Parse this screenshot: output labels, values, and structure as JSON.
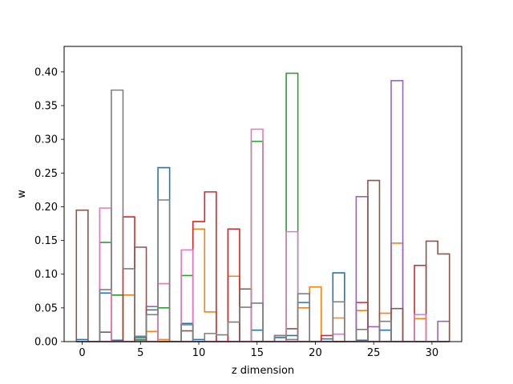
{
  "chart_data": {
    "type": "step",
    "title": "",
    "xlabel": "z dimension",
    "ylabel": "w",
    "xlim": [
      -1.55,
      32.55
    ],
    "ylim": [
      0,
      0.4378
    ],
    "x_ticks": [
      0,
      5,
      10,
      15,
      20,
      25,
      30
    ],
    "y_ticks": [
      0.0,
      0.05,
      0.1,
      0.15,
      0.2,
      0.25,
      0.3,
      0.35,
      0.4
    ],
    "x": [
      0,
      1,
      2,
      3,
      4,
      5,
      6,
      7,
      8,
      9,
      10,
      11,
      12,
      13,
      14,
      15,
      16,
      17,
      18,
      19,
      20,
      21,
      22,
      23,
      24,
      25,
      26,
      27,
      28,
      29,
      30,
      31
    ],
    "series": [
      {
        "color": "#1f77b4",
        "values": [
          0.003,
          0,
          0.072,
          0.002,
          0,
          0.006,
          0.047,
          0.258,
          0,
          0.027,
          0.003,
          0,
          0,
          0,
          0,
          0.017,
          0,
          0.006,
          0.009,
          0.058,
          0,
          0.004,
          0.102,
          0,
          0.002,
          0,
          0.017,
          0,
          0,
          0,
          0,
          0
        ]
      },
      {
        "color": "#ff7f0e",
        "values": [
          0,
          0,
          0,
          0.069,
          0.069,
          0.002,
          0.015,
          0.003,
          0,
          0,
          0.167,
          0.044,
          0,
          0.097,
          0,
          0,
          0,
          0,
          0,
          0.05,
          0.081,
          0,
          0.035,
          0,
          0.046,
          0,
          0.042,
          0.146,
          0,
          0.034,
          0,
          0
        ]
      },
      {
        "color": "#2ca02c",
        "values": [
          0,
          0,
          0.147,
          0.069,
          0,
          0.003,
          0,
          0.05,
          0,
          0.098,
          0,
          0,
          0,
          0,
          0,
          0.297,
          0,
          0,
          0.398,
          0,
          0,
          0,
          0,
          0,
          0,
          0,
          0,
          0,
          0,
          0,
          0,
          0
        ]
      },
      {
        "color": "#d62728",
        "values": [
          0,
          0,
          0,
          0,
          0.185,
          0,
          0,
          0,
          0,
          0,
          0.178,
          0.222,
          0,
          0.167,
          0,
          0,
          0,
          0,
          0,
          0,
          0,
          0.009,
          0,
          0,
          0.058,
          0,
          0,
          0,
          0,
          0.113,
          0,
          0
        ]
      },
      {
        "color": "#9467bd",
        "values": [
          0,
          0,
          0,
          0,
          0,
          0,
          0.052,
          0,
          0,
          0,
          0,
          0,
          0,
          0,
          0,
          0,
          0,
          0,
          0,
          0,
          0,
          0,
          0,
          0,
          0.215,
          0.022,
          0,
          0.387,
          0,
          0,
          0,
          0.03
        ]
      },
      {
        "color": "#8c564b",
        "values": [
          0.195,
          0,
          0.014,
          0,
          0,
          0.14,
          0,
          0,
          0,
          0.016,
          0,
          0,
          0,
          0,
          0.078,
          0,
          0,
          0.009,
          0.019,
          0,
          0,
          0,
          0,
          0,
          0,
          0.239,
          0,
          0.049,
          0,
          0,
          0.149,
          0.13
        ]
      },
      {
        "color": "#e377c2",
        "values": [
          0,
          0,
          0.198,
          0,
          0,
          0,
          0,
          0.086,
          0,
          0.136,
          0,
          0,
          0,
          0,
          0,
          0.315,
          0,
          0,
          0.163,
          0,
          0,
          0,
          0.011,
          0,
          0,
          0,
          0,
          0,
          0,
          0.04,
          0,
          0
        ]
      },
      {
        "color": "#7f7f7f",
        "values": [
          0,
          0,
          0.077,
          0.373,
          0.108,
          0.008,
          0.04,
          0.21,
          0,
          0.025,
          0,
          0.012,
          0.01,
          0.029,
          0.051,
          0.057,
          0,
          0.009,
          0.003,
          0.071,
          0,
          0,
          0.059,
          0,
          0.018,
          0,
          0.03,
          0,
          0,
          0,
          0,
          0
        ]
      }
    ]
  }
}
